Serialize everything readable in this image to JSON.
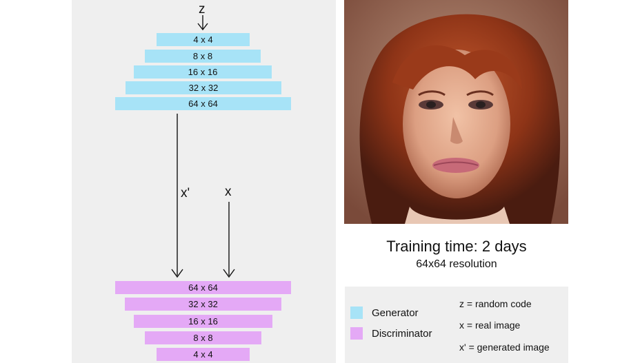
{
  "latent_label": "z",
  "generator_layers": [
    "4 x 4",
    "8 x 8",
    "16 x 16",
    "32 x 32",
    "64 x 64"
  ],
  "discriminator_layers": [
    "64 x 64",
    "32 x 32",
    "16 x 16",
    "8 x 8",
    "4 x 4"
  ],
  "generated_label": "x'",
  "real_label": "x",
  "training_title": "Training time: 2 days",
  "training_resolution": "64x64 resolution",
  "legend": {
    "generator": "Generator",
    "discriminator": "Discriminator",
    "generator_color": "#a7e3f7",
    "discriminator_color": "#e4a9f6"
  },
  "key": {
    "z": "z = random code",
    "x": "x = real image",
    "xp": "x' = generated image"
  }
}
